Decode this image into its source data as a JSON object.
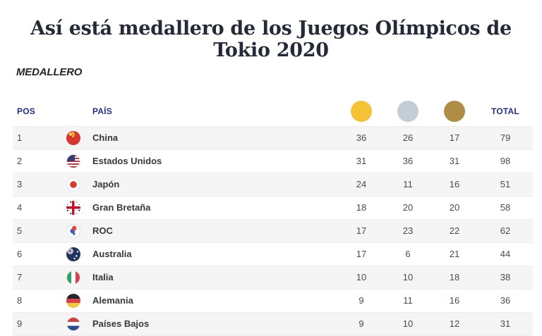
{
  "title": "Así está medallero de los Juegos Olímpicos de Tokio 2020",
  "section_label": "MEDALLERO",
  "colors": {
    "header_text": "#232e83",
    "gold": "#f6c235",
    "silver": "#c2cdd6",
    "bronze": "#b08d44",
    "row_alt_background": "#f5f5f6",
    "country_text": "#383838",
    "number_text": "#4b4b4b",
    "title_text": "#242b36"
  },
  "table": {
    "headers": {
      "pos": "POS",
      "country": "PAÍS",
      "total": "TOTAL"
    },
    "medal_icons": [
      {
        "name": "gold-medal-icon",
        "color": "#f6c235"
      },
      {
        "name": "silver-medal-icon",
        "color": "#c2cdd6"
      },
      {
        "name": "bronze-medal-icon",
        "color": "#b08d44"
      }
    ],
    "rows": [
      {
        "pos": "1",
        "flag": "china",
        "country": "China",
        "gold": "36",
        "silver": "26",
        "bronze": "17",
        "total": "79"
      },
      {
        "pos": "2",
        "flag": "usa",
        "country": "Estados Unidos",
        "gold": "31",
        "silver": "36",
        "bronze": "31",
        "total": "98"
      },
      {
        "pos": "3",
        "flag": "japan",
        "country": "Japón",
        "gold": "24",
        "silver": "11",
        "bronze": "16",
        "total": "51"
      },
      {
        "pos": "4",
        "flag": "uk",
        "country": "Gran Bretaña",
        "gold": "18",
        "silver": "20",
        "bronze": "20",
        "total": "58"
      },
      {
        "pos": "5",
        "flag": "roc",
        "country": "ROC",
        "gold": "17",
        "silver": "23",
        "bronze": "22",
        "total": "62"
      },
      {
        "pos": "6",
        "flag": "australia",
        "country": "Australia",
        "gold": "17",
        "silver": "6",
        "bronze": "21",
        "total": "44"
      },
      {
        "pos": "7",
        "flag": "italy",
        "country": "Italia",
        "gold": "10",
        "silver": "10",
        "bronze": "18",
        "total": "38"
      },
      {
        "pos": "8",
        "flag": "germany",
        "country": "Alemania",
        "gold": "9",
        "silver": "11",
        "bronze": "16",
        "total": "36"
      },
      {
        "pos": "9",
        "flag": "netherlands",
        "country": "Países Bajos",
        "gold": "9",
        "silver": "10",
        "bronze": "12",
        "total": "31"
      }
    ]
  },
  "chart_data": {
    "type": "table",
    "title": "Así está medallero de los Juegos Olímpicos de Tokio 2020",
    "subtitle": "MEDALLERO",
    "columns": [
      "POS",
      "PAÍS",
      "Oro",
      "Plata",
      "Bronce",
      "TOTAL"
    ],
    "rows": [
      [
        1,
        "China",
        36,
        26,
        17,
        79
      ],
      [
        2,
        "Estados Unidos",
        31,
        36,
        31,
        98
      ],
      [
        3,
        "Japón",
        24,
        11,
        16,
        51
      ],
      [
        4,
        "Gran Bretaña",
        18,
        20,
        20,
        58
      ],
      [
        5,
        "ROC",
        17,
        23,
        22,
        62
      ],
      [
        6,
        "Australia",
        17,
        6,
        21,
        44
      ],
      [
        7,
        "Italia",
        10,
        10,
        18,
        38
      ],
      [
        8,
        "Alemania",
        9,
        11,
        16,
        36
      ],
      [
        9,
        "Países Bajos",
        9,
        10,
        12,
        31
      ]
    ]
  }
}
